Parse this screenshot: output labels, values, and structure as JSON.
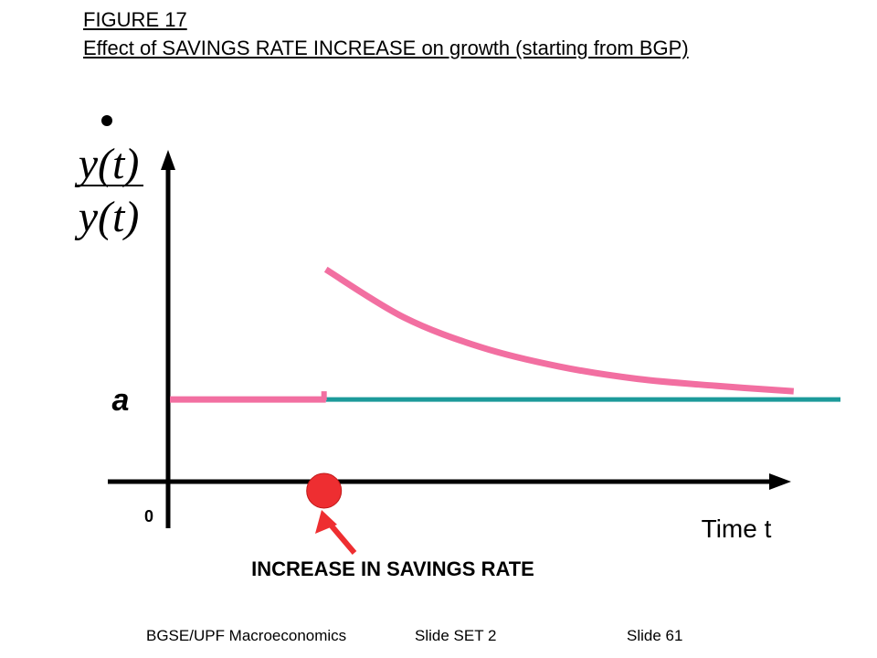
{
  "slide": {
    "figure_label": "FIGURE 17",
    "title": "Effect of SAVINGS RATE INCREASE on growth (starting from BGP)"
  },
  "chart_data": {
    "type": "line",
    "title": "Effect of SAVINGS RATE INCREASE on growth (starting from BGP)",
    "xlabel": "Time t",
    "ylabel_numerator": "y(t)",
    "ylabel_denominator": "y(t)",
    "y_tick_label": "a",
    "x_origin_label": "0",
    "annotation": "INCREASE IN SAVINGS RATE",
    "event_x": 1,
    "xlim": [
      0,
      4.3
    ],
    "ylim": [
      -0.6,
      1.85
    ],
    "series": [
      {
        "color": "#f26fa1",
        "segments": [
          {
            "x": [
              0,
              1
            ],
            "y": [
              0,
              0
            ]
          },
          {
            "x": [
              1,
              1.5,
              2,
              2.5,
              3,
              3.5,
              4
            ],
            "y": [
              0.95,
              0.6,
              0.38,
              0.24,
              0.15,
              0.1,
              0.06
            ]
          }
        ]
      },
      {
        "color": "#1c9a9a",
        "segments": [
          {
            "x": [
              1,
              4.3
            ],
            "y": [
              0,
              0
            ]
          }
        ]
      }
    ],
    "colors": {
      "axis": "#000000",
      "marker": "#ee2e31",
      "arrow": "#ee2e31"
    }
  },
  "footer": {
    "course": "BGSE/UPF Macroeconomics",
    "set": "Slide SET 2",
    "slide_number": "Slide 61"
  }
}
